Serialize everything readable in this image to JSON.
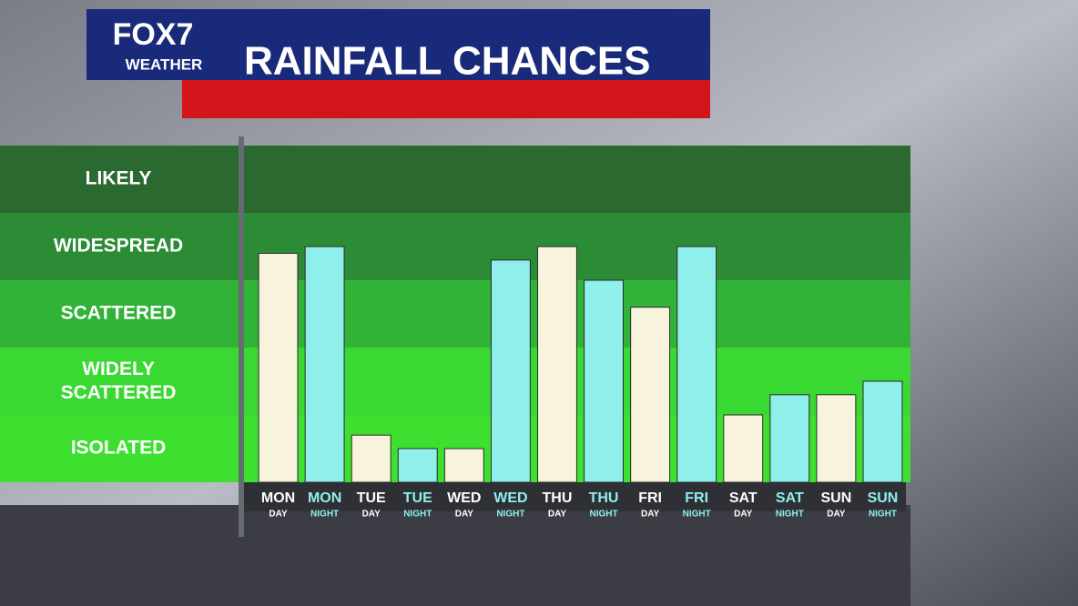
{
  "chart_data": {
    "type": "bar",
    "logo": {
      "brand": "FOX7",
      "sub": "WEATHER"
    },
    "title": "RAINFALL CHANCES",
    "categories": [
      {
        "day": "MON",
        "part": "DAY"
      },
      {
        "day": "MON",
        "part": "NIGHT"
      },
      {
        "day": "TUE",
        "part": "DAY"
      },
      {
        "day": "TUE",
        "part": "NIGHT"
      },
      {
        "day": "WED",
        "part": "DAY"
      },
      {
        "day": "WED",
        "part": "NIGHT"
      },
      {
        "day": "THU",
        "part": "DAY"
      },
      {
        "day": "THU",
        "part": "NIGHT"
      },
      {
        "day": "FRI",
        "part": "DAY"
      },
      {
        "day": "FRI",
        "part": "NIGHT"
      },
      {
        "day": "SAT",
        "part": "DAY"
      },
      {
        "day": "SAT",
        "part": "NIGHT"
      },
      {
        "day": "SUN",
        "part": "DAY"
      },
      {
        "day": "SUN",
        "part": "NIGHT"
      }
    ],
    "values": [
      3.4,
      3.5,
      0.7,
      0.5,
      0.5,
      3.3,
      3.5,
      3.0,
      2.6,
      3.5,
      1.0,
      1.3,
      1.3,
      1.5
    ],
    "colors": {
      "DAY": "#f8f3dc",
      "NIGHT": "#8eefeb"
    },
    "ylim": [
      0,
      5
    ],
    "yticks": [
      {
        "value": 0.5,
        "label": "ISOLATED"
      },
      {
        "value": 1.5,
        "label": "WIDELY SCATTERED"
      },
      {
        "value": 2.5,
        "label": "SCATTERED"
      },
      {
        "value": 3.5,
        "label": "WIDESPREAD"
      },
      {
        "value": 4.5,
        "label": "LIKELY"
      }
    ],
    "band_colors": [
      "#3ee02f",
      "#3ad832",
      "#31b338",
      "#2c8c36",
      "#2a6a31"
    ]
  }
}
